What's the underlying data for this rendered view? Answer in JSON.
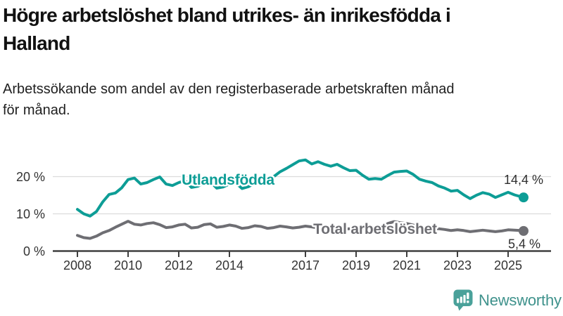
{
  "header": {
    "title_lines": [
      "Högre arbetslöshet bland utrikes- än inrikesfödda i",
      "Halland"
    ],
    "subtitle_lines": [
      "Arbetssökande som andel av den registerbaserade arbetskraften månad",
      "för månad."
    ]
  },
  "chart_data": {
    "type": "line",
    "title": "Högre arbetslöshet bland utrikes- än inrikesfödda i Halland",
    "subtitle": "Arbetssökande som andel av den registerbaserade arbetskraften månad för månad.",
    "unit": "%",
    "grid": true,
    "legend_position": "inline-labels-on-lines",
    "xlim": [
      2007.7,
      2026.0
    ],
    "ylim": [
      0,
      26
    ],
    "y_ticks": [
      {
        "value": 0,
        "label": "0 %"
      },
      {
        "value": 10,
        "label": "10 %"
      },
      {
        "value": 20,
        "label": "20 %"
      }
    ],
    "x_ticks": [
      {
        "value": 2008,
        "label": "2008"
      },
      {
        "value": 2010,
        "label": "2010"
      },
      {
        "value": 2012,
        "label": "2012"
      },
      {
        "value": 2014,
        "label": "2014"
      },
      {
        "value": 2017,
        "label": "2017"
      },
      {
        "value": 2019,
        "label": "2019"
      },
      {
        "value": 2021,
        "label": "2021"
      },
      {
        "value": 2023,
        "label": "2023"
      },
      {
        "value": 2025,
        "label": "2025"
      }
    ],
    "x": [
      2008,
      2008.25,
      2008.5,
      2008.75,
      2009,
      2009.25,
      2009.5,
      2009.75,
      2010,
      2010.25,
      2010.5,
      2010.75,
      2011,
      2011.25,
      2011.5,
      2011.75,
      2012,
      2012.25,
      2012.5,
      2012.75,
      2013,
      2013.25,
      2013.5,
      2013.75,
      2014,
      2014.25,
      2014.5,
      2014.75,
      2015,
      2015.25,
      2015.5,
      2015.75,
      2016,
      2016.25,
      2016.5,
      2016.75,
      2017,
      2017.25,
      2017.5,
      2017.75,
      2018,
      2018.25,
      2018.5,
      2018.75,
      2019,
      2019.25,
      2019.5,
      2019.75,
      2020,
      2020.25,
      2020.5,
      2020.75,
      2021,
      2021.25,
      2021.5,
      2021.75,
      2022,
      2022.25,
      2022.5,
      2022.75,
      2023,
      2023.25,
      2023.5,
      2023.75,
      2024,
      2024.25,
      2024.5,
      2024.75,
      2025,
      2025.25,
      2025.5,
      2025.61
    ],
    "series": [
      {
        "id": "utlandsfodda",
        "name": "Utlandsfödda",
        "color": "#0d9d96",
        "end_label": "14,4 %",
        "end_value": 14.4,
        "values": [
          11.2,
          10.0,
          9.4,
          10.6,
          13.2,
          15.2,
          15.6,
          17.0,
          19.2,
          19.6,
          18.0,
          18.4,
          19.2,
          19.9,
          18.0,
          17.6,
          18.4,
          18.9,
          17.1,
          17.4,
          18.3,
          18.6,
          16.9,
          17.2,
          18.0,
          18.3,
          16.8,
          17.3,
          18.2,
          18.7,
          18.0,
          20.0,
          21.3,
          22.2,
          23.2,
          24.2,
          24.5,
          23.4,
          24.0,
          23.3,
          22.8,
          23.3,
          22.4,
          21.6,
          21.7,
          20.4,
          19.3,
          19.5,
          19.3,
          20.3,
          21.2,
          21.4,
          21.5,
          20.6,
          19.3,
          18.8,
          18.4,
          17.5,
          16.9,
          16.1,
          16.3,
          15.1,
          14.1,
          15.0,
          15.7,
          15.3,
          14.4,
          15.1,
          15.8,
          15.1,
          14.6,
          14.4
        ]
      },
      {
        "id": "total-arbetsloshet",
        "name": "Total arbetslöshet",
        "color": "#6e6e73",
        "end_label": "5,4 %",
        "end_value": 5.4,
        "values": [
          4.2,
          3.6,
          3.4,
          4.0,
          4.9,
          5.5,
          6.4,
          7.2,
          8.0,
          7.2,
          7.0,
          7.4,
          7.6,
          7.1,
          6.3,
          6.5,
          7.0,
          7.2,
          6.2,
          6.4,
          7.1,
          7.3,
          6.4,
          6.6,
          7.0,
          6.7,
          6.1,
          6.3,
          6.8,
          6.6,
          6.1,
          6.3,
          6.7,
          6.5,
          6.2,
          6.4,
          6.7,
          6.5,
          6.2,
          6.3,
          6.4,
          6.2,
          5.9,
          6.0,
          6.2,
          6.0,
          5.9,
          6.1,
          6.3,
          7.4,
          7.9,
          7.6,
          7.4,
          7.0,
          6.6,
          6.3,
          6.1,
          6.0,
          5.8,
          5.5,
          5.7,
          5.5,
          5.2,
          5.4,
          5.6,
          5.4,
          5.2,
          5.4,
          5.7,
          5.6,
          5.5,
          5.4
        ]
      }
    ]
  },
  "footer": {
    "brand": "Newsworthy"
  },
  "theme": {
    "accent": "#0d9d96",
    "gray": "#6e6e73",
    "grid": "#dcdcdc",
    "axis": "#3f3f3f",
    "brand_text": "#3f928c",
    "brand_bubble": "#4aa19a"
  }
}
